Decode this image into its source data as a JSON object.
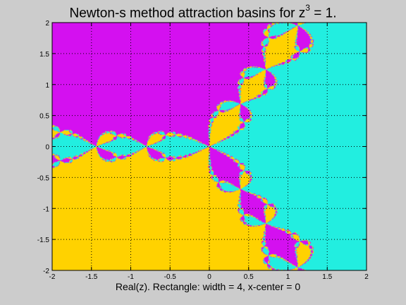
{
  "chart_data": {
    "type": "heatmap",
    "title_prefix": "Newton-s method attraction basins for z",
    "title_exponent": "3",
    "title_suffix": " = 1.",
    "xlabel": "Real(z).  Rectangle: width = 4, x-center = 0",
    "ylabel": "",
    "xlim": [
      -2,
      2
    ],
    "ylim": [
      -2,
      2
    ],
    "x_ticks": [
      -2,
      -1.5,
      -1,
      -0.5,
      0,
      0.5,
      1,
      1.5,
      2
    ],
    "x_tick_labels": [
      "-2",
      "-1.5",
      "-1",
      "-0.5",
      "0",
      "0.5",
      "1",
      "1.5",
      "2"
    ],
    "y_ticks": [
      -2,
      -1.5,
      -1,
      -0.5,
      0,
      0.5,
      1,
      1.5,
      2
    ],
    "y_tick_labels": [
      "-2",
      "-1.5",
      "-1",
      "-0.5",
      "0",
      "0.5",
      "1",
      "1.5",
      "2"
    ],
    "grid": true,
    "function": "z^3 = 1",
    "roots": [
      {
        "re": 1,
        "im": 0,
        "color": "#22eee0"
      },
      {
        "re": -0.5,
        "im": 0.8660254,
        "color": "#d410f0"
      },
      {
        "re": -0.5,
        "im": -0.8660254,
        "color": "#ffd200"
      }
    ]
  }
}
